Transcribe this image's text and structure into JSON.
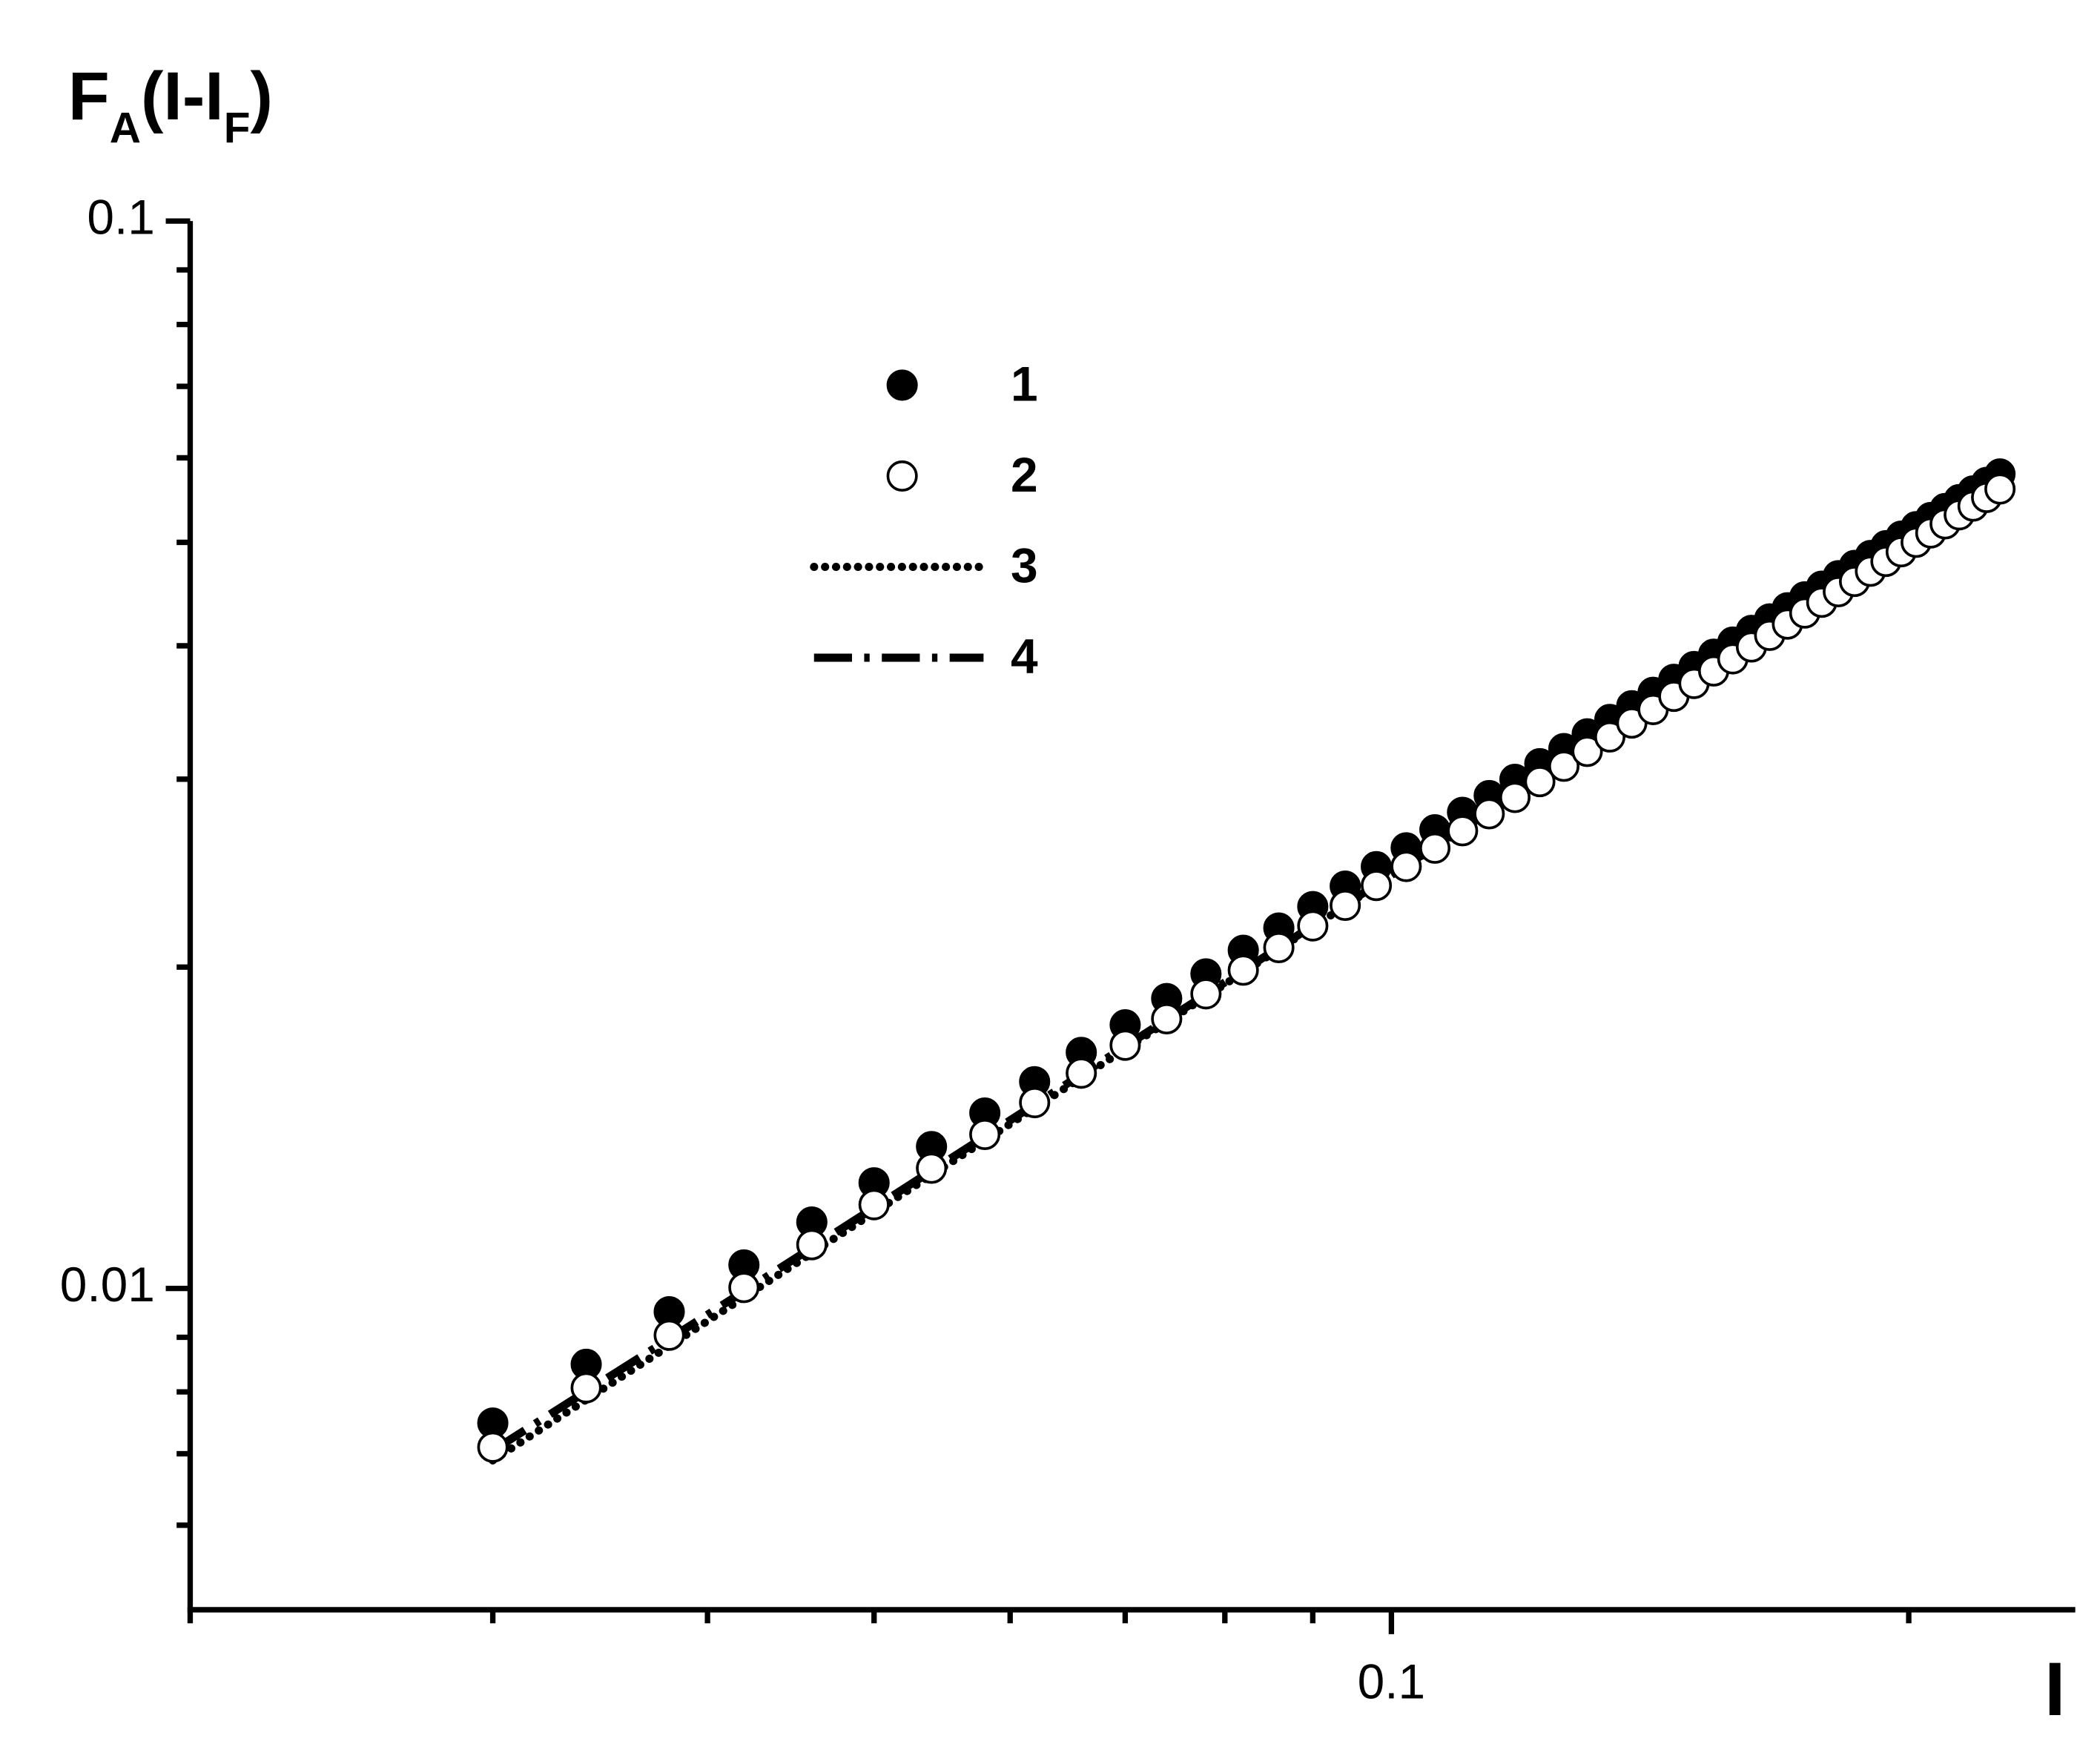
{
  "chart_data": {
    "type": "scatter",
    "ylabel": [
      "F",
      "A",
      "(I-I",
      "F",
      ")"
    ],
    "xlabel": "I",
    "xlog": true,
    "ylog": true,
    "xlim": [
      0.02,
      0.25
    ],
    "ylim": [
      0.005,
      0.1
    ],
    "xticks": [
      0.1
    ],
    "xticks_minor": [
      0.02,
      0.03,
      0.04,
      0.05,
      0.06,
      0.07,
      0.08,
      0.09,
      0.2
    ],
    "yticks": [
      0.01,
      0.1
    ],
    "yticks_minor": [
      0.006,
      0.007,
      0.008,
      0.009,
      0.02,
      0.03,
      0.04,
      0.05,
      0.06,
      0.07,
      0.08,
      0.09
    ],
    "series": [
      {
        "name": "1",
        "mode": "markers",
        "color": "#000000",
        "marker_fill": "#000000",
        "x": [
          0.03,
          0.034,
          0.038,
          0.042,
          0.046,
          0.05,
          0.054,
          0.058,
          0.062,
          0.066,
          0.07,
          0.074,
          0.078,
          0.082,
          0.086,
          0.09,
          0.094,
          0.098,
          0.102,
          0.106,
          0.11,
          0.114,
          0.118,
          0.122,
          0.126,
          0.13,
          0.134,
          0.138,
          0.142,
          0.146,
          0.15,
          0.154,
          0.158,
          0.162,
          0.166,
          0.17,
          0.174,
          0.178,
          0.182,
          0.186,
          0.19,
          0.194,
          0.198,
          0.202,
          0.206,
          0.21,
          0.214,
          0.218,
          0.222,
          0.226
        ],
        "values": [
          0.00748,
          0.00849,
          0.00951,
          0.01052,
          0.01154,
          0.01256,
          0.01358,
          0.0146,
          0.01562,
          0.01664,
          0.01766,
          0.01869,
          0.01971,
          0.02074,
          0.02176,
          0.02279,
          0.02382,
          0.02484,
          0.02587,
          0.0269,
          0.02793,
          0.02896,
          0.02999,
          0.03102,
          0.03205,
          0.03308,
          0.03412,
          0.03515,
          0.03618,
          0.03721,
          0.03825,
          0.03928,
          0.04032,
          0.04135,
          0.04239,
          0.04342,
          0.04446,
          0.04549,
          0.04653,
          0.04757,
          0.0486,
          0.04964,
          0.05068,
          0.05172,
          0.05276,
          0.05379,
          0.05483,
          0.05587,
          0.05691,
          0.05795
        ]
      },
      {
        "name": "2",
        "mode": "markers",
        "color": "#000000",
        "marker_fill": "#ffffff",
        "x": [
          0.03,
          0.034,
          0.038,
          0.042,
          0.046,
          0.05,
          0.054,
          0.058,
          0.062,
          0.066,
          0.07,
          0.074,
          0.078,
          0.082,
          0.086,
          0.09,
          0.094,
          0.098,
          0.102,
          0.106,
          0.11,
          0.114,
          0.118,
          0.122,
          0.126,
          0.13,
          0.134,
          0.138,
          0.142,
          0.146,
          0.15,
          0.154,
          0.158,
          0.162,
          0.166,
          0.17,
          0.174,
          0.178,
          0.182,
          0.186,
          0.19,
          0.194,
          0.198,
          0.202,
          0.206,
          0.21,
          0.214,
          0.218,
          0.222,
          0.226
        ],
        "values": [
          0.0071,
          0.00807,
          0.00904,
          0.01002,
          0.01099,
          0.01198,
          0.01296,
          0.01394,
          0.01493,
          0.01591,
          0.0169,
          0.01789,
          0.01888,
          0.01987,
          0.02086,
          0.02186,
          0.02285,
          0.02385,
          0.02485,
          0.02585,
          0.02684,
          0.02784,
          0.02884,
          0.02984,
          0.03085,
          0.03185,
          0.03286,
          0.03386,
          0.03486,
          0.03587,
          0.03688,
          0.03789,
          0.03889,
          0.0399,
          0.04091,
          0.04192,
          0.04293,
          0.04394,
          0.04495,
          0.04596,
          0.04698,
          0.04799,
          0.049,
          0.05001,
          0.05103,
          0.05204,
          0.05306,
          0.05407,
          0.05509,
          0.0561
        ]
      },
      {
        "name": "3",
        "mode": "line",
        "dash": "dotted",
        "color": "#000000",
        "x": [
          0.03,
          0.04,
          0.05,
          0.06,
          0.08,
          0.1,
          0.12,
          0.15,
          0.18,
          0.2,
          0.226
        ],
        "values": [
          0.0069,
          0.00932,
          0.01178,
          0.01426,
          0.01927,
          0.02435,
          0.02948,
          0.03725,
          0.04509,
          0.05035,
          0.05724
        ]
      },
      {
        "name": "4",
        "mode": "line",
        "dash": "dashdot",
        "color": "#000000",
        "x": [
          0.03,
          0.04,
          0.05,
          0.06,
          0.08,
          0.1,
          0.12,
          0.15,
          0.18,
          0.2,
          0.226
        ],
        "values": [
          0.00705,
          0.00945,
          0.0119,
          0.01437,
          0.01935,
          0.0244,
          0.0295,
          0.03722,
          0.045,
          0.0502,
          0.057
        ]
      }
    ]
  }
}
